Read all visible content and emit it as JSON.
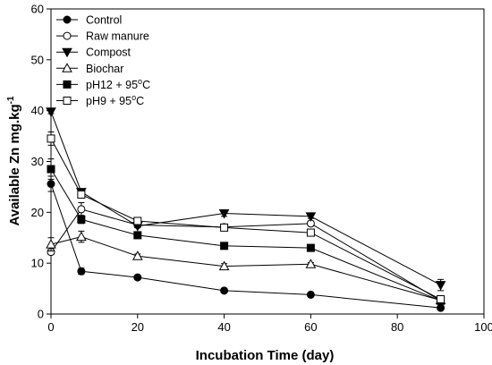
{
  "chart_data": {
    "type": "line",
    "xlabel": "Incubation Time (day)",
    "ylabel_main": "Available Zn mg.kg",
    "ylabel_sup": "-1",
    "xlim": [
      0,
      100
    ],
    "ylim": [
      0,
      60
    ],
    "xticks": [
      0,
      20,
      40,
      60,
      80,
      100
    ],
    "yticks": [
      0,
      10,
      20,
      30,
      40,
      50,
      60
    ],
    "x": [
      0,
      7,
      20,
      40,
      60,
      90
    ],
    "legend_position": "top-left",
    "series": [
      {
        "name": "Control",
        "display_name": [
          "Control"
        ],
        "marker": "circle",
        "filled": true,
        "values": [
          25.6,
          8.4,
          7.2,
          4.6,
          3.8,
          1.2
        ],
        "errors": [
          1.5,
          0.6,
          0.3,
          0.3,
          0.3,
          0.2
        ]
      },
      {
        "name": "Raw manure",
        "display_name": [
          "Raw manure"
        ],
        "marker": "circle",
        "filled": false,
        "values": [
          12.2,
          20.6,
          17.5,
          17.1,
          17.8,
          2.6
        ],
        "errors": [
          0.5,
          1.3,
          0.5,
          0.5,
          0.5,
          0.3
        ]
      },
      {
        "name": "Compost",
        "display_name": [
          "Compost"
        ],
        "marker": "triangle-down",
        "filled": true,
        "values": [
          39.8,
          24.0,
          17.3,
          19.8,
          19.2,
          5.7
        ],
        "errors": [
          0.4,
          0.4,
          0.3,
          0.6,
          0.4,
          1.1
        ]
      },
      {
        "name": "Biochar",
        "display_name": [
          "Biochar"
        ],
        "marker": "triangle-up",
        "filled": false,
        "values": [
          13.7,
          15.2,
          11.4,
          9.4,
          9.8,
          2.7
        ],
        "errors": [
          1.3,
          1.1,
          0.4,
          0.5,
          0.3,
          0.3
        ]
      },
      {
        "name": "pH12 + 95oC",
        "display_name": [
          "pH12 + 95",
          "o",
          "C"
        ],
        "marker": "square",
        "filled": true,
        "values": [
          28.5,
          18.6,
          15.5,
          13.4,
          13.0,
          2.6
        ],
        "errors": [
          2.0,
          0.8,
          0.3,
          0.5,
          0.3,
          0.3
        ]
      },
      {
        "name": "pH9 + 95oC",
        "display_name": [
          "pH9 + 95",
          "o",
          "C"
        ],
        "marker": "square",
        "filled": false,
        "values": [
          34.5,
          23.5,
          18.3,
          17.0,
          16.0,
          2.9
        ],
        "errors": [
          1.3,
          0.5,
          0.4,
          0.4,
          0.3,
          0.3
        ]
      }
    ]
  }
}
